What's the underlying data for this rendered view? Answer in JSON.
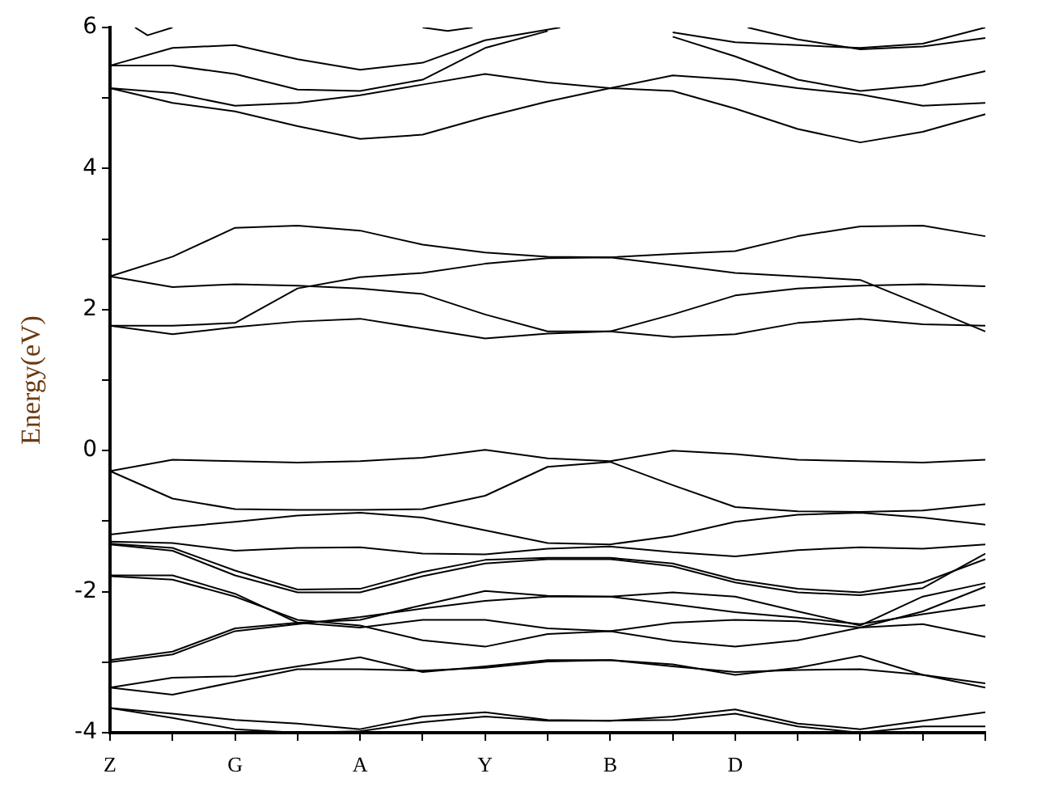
{
  "chart_data": {
    "type": "line",
    "ylabel": "Energy(eV)",
    "ylim": [
      -4,
      6
    ],
    "categories": [
      "Z",
      null,
      null,
      null,
      null,
      null,
      null,
      null,
      null,
      null,
      "G",
      null,
      null,
      null,
      null,
      null,
      null,
      null,
      null,
      null,
      "A",
      null,
      null,
      null,
      null,
      null,
      null,
      null,
      null,
      null,
      "Y",
      null,
      null,
      null,
      null,
      null,
      null,
      null,
      null,
      null,
      "B",
      null,
      null,
      null,
      null,
      null,
      null,
      null,
      null,
      null,
      "D",
      null,
      null,
      null,
      null,
      null,
      null,
      null,
      null,
      null,
      null,
      null,
      null,
      null,
      null,
      null,
      null,
      null,
      null,
      null,
      null
    ],
    "yticks": [
      -4,
      {
        "value": -3,
        "label": null
      },
      -2,
      {
        "value": -1,
        "label": null
      },
      0,
      {
        "value": 1,
        "label": null
      },
      2,
      {
        "value": 3,
        "label": null
      },
      4,
      {
        "value": 5,
        "label": null
      },
      6
    ],
    "grid": false,
    "legend": false,
    "marker": "none",
    "line_style": "solid",
    "series": [
      {
        "color": "#000000",
        "values": [
          5.14,
          null,
          null,
          null,
          null,
          4.93,
          null,
          null,
          null,
          null,
          4.81,
          null,
          null,
          null,
          null,
          4.6,
          null,
          null,
          null,
          null,
          4.42,
          null,
          null,
          null,
          null,
          4.48,
          null,
          null,
          null,
          null,
          4.73,
          null,
          null,
          null,
          null,
          4.95,
          null,
          null,
          null,
          null,
          5.14,
          null,
          null,
          null,
          null,
          5.1,
          null,
          null,
          null,
          null,
          4.85,
          null,
          null,
          null,
          null,
          4.56,
          null,
          null,
          null,
          null,
          4.37,
          null,
          null,
          null,
          null,
          4.52,
          null,
          null,
          null,
          null,
          4.77
        ]
      },
      {
        "color": "#000000",
        "values": [
          5.14,
          null,
          null,
          null,
          null,
          5.07,
          null,
          null,
          null,
          null,
          4.89,
          null,
          null,
          null,
          null,
          4.93,
          null,
          null,
          null,
          null,
          5.04,
          null,
          null,
          null,
          null,
          5.19,
          null,
          null,
          null,
          null,
          5.34,
          null,
          null,
          null,
          null,
          5.22,
          null,
          null,
          null,
          null,
          5.14,
          null,
          null,
          null,
          null,
          5.32,
          null,
          null,
          null,
          null,
          5.26,
          null,
          null,
          null,
          null,
          5.14,
          null,
          null,
          null,
          null,
          5.05,
          null,
          null,
          null,
          null,
          4.89,
          null,
          null,
          null,
          null,
          4.93
        ]
      },
      {
        "color": "#000000",
        "values": [
          5.46,
          null,
          null,
          null,
          null,
          5.46,
          null,
          null,
          null,
          null,
          5.34,
          null,
          null,
          null,
          null,
          5.12,
          null,
          null,
          null,
          null,
          5.1,
          null,
          null,
          null,
          null,
          5.26,
          null,
          null,
          null,
          null,
          5.71,
          null,
          null,
          null,
          null,
          5.95,
          null,
          null,
          null,
          null,
          null,
          null,
          null,
          null,
          null,
          null,
          null,
          null,
          null,
          null,
          null,
          null,
          null,
          null,
          null,
          null,
          null,
          null,
          null,
          null,
          null,
          null,
          null,
          null,
          null,
          null,
          null,
          null,
          null,
          null,
          null
        ]
      },
      {
        "color": "#000000",
        "values": [
          null,
          null,
          null,
          null,
          null,
          null,
          null,
          null,
          null,
          null,
          null,
          null,
          null,
          null,
          null,
          null,
          null,
          null,
          null,
          null,
          null,
          null,
          null,
          null,
          null,
          null,
          null,
          null,
          null,
          null,
          null,
          null,
          null,
          null,
          null,
          null,
          null,
          null,
          null,
          null,
          null,
          null,
          null,
          null,
          null,
          5.87,
          null,
          null,
          null,
          null,
          5.59,
          null,
          null,
          null,
          null,
          5.26,
          null,
          null,
          null,
          null,
          5.1,
          null,
          null,
          null,
          null,
          5.18,
          null,
          null,
          null,
          null,
          5.38
        ]
      },
      {
        "color": "#000000",
        "values": [
          5.46,
          null,
          null,
          null,
          null,
          5.71,
          null,
          null,
          null,
          null,
          5.75,
          null,
          null,
          null,
          null,
          5.55,
          null,
          null,
          null,
          null,
          5.4,
          null,
          null,
          null,
          null,
          5.5,
          null,
          null,
          null,
          null,
          5.82,
          null,
          null,
          null,
          null,
          null,
          6.0,
          null,
          null,
          null,
          null,
          null,
          null,
          null,
          null,
          null,
          null,
          null,
          null,
          null,
          null,
          null,
          null,
          null,
          null,
          null,
          null,
          null,
          null,
          null,
          null,
          null,
          null,
          null,
          null,
          null,
          null,
          null,
          null,
          null,
          null
        ]
      },
      {
        "color": "#000000",
        "values": [
          null,
          null,
          null,
          null,
          null,
          null,
          null,
          null,
          null,
          null,
          null,
          null,
          null,
          null,
          null,
          null,
          null,
          null,
          null,
          null,
          null,
          null,
          null,
          null,
          null,
          null,
          null,
          null,
          null,
          null,
          null,
          null,
          null,
          null,
          null,
          null,
          null,
          null,
          null,
          null,
          null,
          null,
          null,
          null,
          null,
          5.93,
          null,
          null,
          null,
          null,
          5.79,
          null,
          null,
          null,
          null,
          5.75,
          null,
          null,
          null,
          null,
          5.71,
          null,
          null,
          null,
          null,
          5.77,
          null,
          null,
          null,
          null,
          6.0
        ]
      },
      {
        "color": "#000000",
        "values": [
          null,
          null,
          6.0,
          5.89,
          null,
          6.0,
          null,
          null,
          null,
          null,
          null,
          null,
          null,
          null,
          null,
          null,
          null,
          null,
          null,
          null,
          null,
          null,
          null,
          null,
          null,
          null,
          null,
          null,
          null,
          null,
          null,
          null,
          null,
          null,
          null,
          null,
          null,
          null,
          null,
          null,
          null,
          null,
          null,
          null,
          null,
          null,
          null,
          null,
          null,
          null,
          null,
          null,
          null,
          null,
          null,
          null,
          null,
          null,
          null,
          null,
          null,
          null,
          null,
          null,
          null,
          null,
          null,
          null,
          null,
          null,
          null
        ]
      },
      {
        "color": "#000000",
        "values": [
          null,
          null,
          null,
          null,
          null,
          null,
          null,
          null,
          null,
          null,
          null,
          null,
          null,
          null,
          null,
          null,
          null,
          null,
          null,
          null,
          null,
          null,
          null,
          null,
          null,
          6.0,
          null,
          5.95,
          null,
          6.0,
          null,
          null,
          null,
          null,
          null,
          null,
          null,
          null,
          null,
          null,
          null,
          null,
          null,
          null,
          null,
          null,
          null,
          null,
          null,
          null,
          null,
          null,
          null,
          null,
          null,
          null,
          null,
          null,
          null,
          null,
          null,
          null,
          null,
          null,
          null,
          null,
          null,
          null,
          null,
          null,
          null
        ]
      },
      {
        "color": "#000000",
        "values": [
          null,
          null,
          null,
          null,
          null,
          null,
          null,
          null,
          null,
          null,
          null,
          null,
          null,
          null,
          null,
          null,
          null,
          null,
          null,
          null,
          null,
          null,
          null,
          null,
          null,
          null,
          null,
          null,
          null,
          null,
          null,
          null,
          null,
          null,
          null,
          null,
          null,
          null,
          null,
          null,
          null,
          null,
          null,
          null,
          null,
          null,
          null,
          null,
          null,
          null,
          null,
          6.0,
          null,
          null,
          null,
          5.83,
          null,
          null,
          null,
          null,
          5.69,
          null,
          null,
          null,
          null,
          5.73,
          null,
          null,
          null,
          null,
          5.85
        ]
      },
      {
        "color": "#000000",
        "values": [
          2.47,
          null,
          null,
          null,
          null,
          2.75,
          null,
          null,
          null,
          null,
          3.16,
          null,
          null,
          null,
          null,
          3.19,
          null,
          null,
          null,
          null,
          3.12,
          null,
          null,
          null,
          null,
          2.92,
          null,
          null,
          null,
          null,
          2.81,
          null,
          null,
          null,
          null,
          2.75,
          null,
          null,
          null,
          null,
          2.74,
          null,
          null,
          null,
          null,
          2.79,
          null,
          null,
          null,
          null,
          2.83,
          null,
          null,
          null,
          null,
          3.04,
          null,
          null,
          null,
          null,
          3.18,
          null,
          null,
          null,
          null,
          3.19,
          null,
          null,
          null,
          null,
          3.04
        ]
      },
      {
        "color": "#000000",
        "values": [
          2.47,
          null,
          null,
          null,
          null,
          2.32,
          null,
          null,
          null,
          null,
          2.36,
          null,
          null,
          null,
          null,
          2.34,
          null,
          null,
          null,
          null,
          2.3,
          null,
          null,
          null,
          null,
          2.22,
          null,
          null,
          null,
          null,
          1.93,
          null,
          null,
          null,
          null,
          1.69,
          null,
          null,
          null,
          null,
          1.69,
          null,
          null,
          null,
          null,
          1.93,
          null,
          null,
          null,
          null,
          2.2,
          null,
          null,
          null,
          null,
          2.3,
          null,
          null,
          null,
          null,
          2.34,
          null,
          null,
          null,
          null,
          2.36,
          null,
          null,
          null,
          null,
          2.33
        ]
      },
      {
        "color": "#000000",
        "values": [
          1.77,
          null,
          null,
          null,
          null,
          1.77,
          null,
          null,
          null,
          null,
          1.81,
          null,
          null,
          null,
          null,
          2.3,
          null,
          null,
          null,
          null,
          2.46,
          null,
          null,
          null,
          null,
          2.52,
          null,
          null,
          null,
          null,
          2.65,
          null,
          null,
          null,
          null,
          2.73,
          null,
          null,
          null,
          null,
          2.74,
          null,
          null,
          null,
          null,
          2.63,
          null,
          null,
          null,
          null,
          2.52,
          null,
          null,
          null,
          null,
          2.47,
          null,
          null,
          null,
          null,
          2.42,
          null,
          null,
          null,
          null,
          2.06,
          null,
          null,
          null,
          null,
          1.69
        ]
      },
      {
        "color": "#000000",
        "values": [
          1.77,
          null,
          null,
          null,
          null,
          1.65,
          null,
          null,
          null,
          null,
          1.75,
          null,
          null,
          null,
          null,
          1.83,
          null,
          null,
          null,
          null,
          1.87,
          null,
          null,
          null,
          null,
          1.73,
          null,
          null,
          null,
          null,
          1.59,
          null,
          null,
          null,
          null,
          1.66,
          null,
          null,
          null,
          null,
          1.69,
          null,
          null,
          null,
          null,
          1.61,
          null,
          null,
          null,
          null,
          1.65,
          null,
          null,
          null,
          null,
          1.81,
          null,
          null,
          null,
          null,
          1.87,
          null,
          null,
          null,
          null,
          1.79,
          null,
          null,
          null,
          null,
          1.77
        ]
      },
      {
        "color": "#000000",
        "values": [
          -0.29,
          null,
          null,
          null,
          null,
          -0.13,
          null,
          null,
          null,
          null,
          -0.15,
          null,
          null,
          null,
          null,
          -0.17,
          null,
          null,
          null,
          null,
          -0.15,
          null,
          null,
          null,
          null,
          -0.1,
          null,
          null,
          null,
          null,
          0.01,
          null,
          null,
          null,
          null,
          -0.11,
          null,
          null,
          null,
          null,
          -0.15,
          null,
          null,
          null,
          null,
          0.0,
          null,
          null,
          null,
          null,
          -0.05,
          null,
          null,
          null,
          null,
          -0.13,
          null,
          null,
          null,
          null,
          -0.15,
          null,
          null,
          null,
          null,
          -0.17,
          null,
          null,
          null,
          null,
          -0.13
        ]
      },
      {
        "color": "#000000",
        "values": [
          -0.29,
          null,
          null,
          null,
          null,
          -0.68,
          null,
          null,
          null,
          null,
          -0.83,
          null,
          null,
          null,
          null,
          -0.84,
          null,
          null,
          null,
          null,
          -0.84,
          null,
          null,
          null,
          null,
          -0.83,
          null,
          null,
          null,
          null,
          -0.64,
          null,
          null,
          null,
          null,
          -0.23,
          null,
          null,
          null,
          null,
          -0.16,
          null,
          null,
          null,
          null,
          -0.49,
          null,
          null,
          null,
          null,
          -0.8,
          null,
          null,
          null,
          null,
          -0.86,
          null,
          null,
          null,
          null,
          -0.87,
          null,
          null,
          null,
          null,
          -0.85,
          null,
          null,
          null,
          null,
          -0.76
        ]
      },
      {
        "color": "#000000",
        "values": [
          -1.19,
          null,
          null,
          null,
          null,
          -1.09,
          null,
          null,
          null,
          null,
          -1.01,
          null,
          null,
          null,
          null,
          -0.92,
          null,
          null,
          null,
          null,
          -0.88,
          null,
          null,
          null,
          null,
          -0.95,
          null,
          null,
          null,
          null,
          -1.13,
          null,
          null,
          null,
          null,
          -1.31,
          null,
          null,
          null,
          null,
          -1.33,
          null,
          null,
          null,
          null,
          -1.21,
          null,
          null,
          null,
          null,
          -1.01,
          null,
          null,
          null,
          null,
          -0.91,
          null,
          null,
          null,
          null,
          -0.88,
          null,
          null,
          null,
          null,
          -0.95,
          null,
          null,
          null,
          null,
          -1.05
        ]
      },
      {
        "color": "#000000",
        "values": [
          -1.29,
          null,
          null,
          null,
          null,
          -1.31,
          null,
          null,
          null,
          null,
          -1.42,
          null,
          null,
          null,
          null,
          -1.38,
          null,
          null,
          null,
          null,
          -1.37,
          null,
          null,
          null,
          null,
          -1.46,
          null,
          null,
          null,
          null,
          -1.47,
          null,
          null,
          null,
          null,
          -1.39,
          null,
          null,
          null,
          null,
          -1.36,
          null,
          null,
          null,
          null,
          -1.44,
          null,
          null,
          null,
          null,
          -1.5,
          null,
          null,
          null,
          null,
          -1.41,
          null,
          null,
          null,
          null,
          -1.37,
          null,
          null,
          null,
          null,
          -1.39,
          null,
          null,
          null,
          null,
          -1.33
        ]
      },
      {
        "color": "#000000",
        "values": [
          -1.32,
          null,
          null,
          null,
          null,
          -1.38,
          null,
          null,
          null,
          null,
          -1.7,
          null,
          null,
          null,
          null,
          -1.97,
          null,
          null,
          null,
          null,
          -1.96,
          null,
          null,
          null,
          null,
          -1.72,
          null,
          null,
          null,
          null,
          -1.55,
          null,
          null,
          null,
          null,
          -1.52,
          null,
          null,
          null,
          null,
          -1.52,
          null,
          null,
          null,
          null,
          -1.6,
          null,
          null,
          null,
          null,
          -1.83,
          null,
          null,
          null,
          null,
          -1.96,
          null,
          null,
          null,
          null,
          -2.01,
          null,
          null,
          null,
          null,
          -1.87,
          null,
          null,
          null,
          null,
          -1.54
        ]
      },
      {
        "color": "#000000",
        "values": [
          -1.33,
          null,
          null,
          null,
          null,
          -1.42,
          null,
          null,
          null,
          null,
          -1.77,
          null,
          null,
          null,
          null,
          -2.01,
          null,
          null,
          null,
          null,
          -2.01,
          null,
          null,
          null,
          null,
          -1.78,
          null,
          null,
          null,
          null,
          -1.6,
          null,
          null,
          null,
          null,
          -1.54,
          null,
          null,
          null,
          null,
          -1.54,
          null,
          null,
          null,
          null,
          -1.64,
          null,
          null,
          null,
          null,
          -1.87,
          null,
          null,
          null,
          null,
          -2.01,
          null,
          null,
          null,
          null,
          -2.05,
          null,
          null,
          null,
          null,
          -1.95,
          null,
          null,
          null,
          null,
          -1.46
        ]
      },
      {
        "color": "#000000",
        "values": [
          -1.77,
          null,
          null,
          null,
          null,
          -1.77,
          null,
          null,
          null,
          null,
          -2.03,
          null,
          null,
          null,
          null,
          -2.44,
          null,
          null,
          null,
          null,
          -2.4,
          null,
          null,
          null,
          null,
          -2.19,
          null,
          null,
          null,
          null,
          -1.99,
          null,
          null,
          null,
          null,
          -2.06,
          null,
          null,
          null,
          null,
          -2.07,
          null,
          null,
          null,
          null,
          -2.01,
          null,
          null,
          null,
          null,
          -2.07,
          null,
          null,
          null,
          null,
          -2.28,
          null,
          null,
          null,
          null,
          -2.48,
          null,
          null,
          null,
          null,
          -2.07,
          null,
          null,
          null,
          null,
          -1.88
        ]
      },
      {
        "color": "#000000",
        "values": [
          -1.78,
          null,
          null,
          null,
          null,
          -1.83,
          null,
          null,
          null,
          null,
          -2.07,
          null,
          null,
          null,
          null,
          -2.4,
          null,
          null,
          null,
          null,
          -2.48,
          null,
          null,
          null,
          null,
          -2.69,
          null,
          null,
          null,
          null,
          -2.78,
          null,
          null,
          null,
          null,
          -2.6,
          null,
          null,
          null,
          null,
          -2.56,
          null,
          null,
          null,
          null,
          -2.7,
          null,
          null,
          null,
          null,
          -2.78,
          null,
          null,
          null,
          null,
          -2.69,
          null,
          null,
          null,
          null,
          -2.51,
          null,
          null,
          null,
          null,
          -2.28,
          null,
          null,
          null,
          null,
          -1.93
        ]
      },
      {
        "color": "#000000",
        "values": [
          -2.97,
          null,
          null,
          null,
          null,
          -2.85,
          null,
          null,
          null,
          null,
          -2.52,
          null,
          null,
          null,
          null,
          -2.44,
          null,
          null,
          null,
          null,
          -2.51,
          null,
          null,
          null,
          null,
          -2.4,
          null,
          null,
          null,
          null,
          -2.4,
          null,
          null,
          null,
          null,
          -2.52,
          null,
          null,
          null,
          null,
          -2.56,
          null,
          null,
          null,
          null,
          -2.44,
          null,
          null,
          null,
          null,
          -2.4,
          null,
          null,
          null,
          null,
          -2.42,
          null,
          null,
          null,
          null,
          -2.51,
          null,
          null,
          null,
          null,
          -2.46,
          null,
          null,
          null,
          null,
          -2.64
        ]
      },
      {
        "color": "#000000",
        "values": [
          -3.0,
          null,
          null,
          null,
          null,
          -2.89,
          null,
          null,
          null,
          null,
          -2.56,
          null,
          null,
          null,
          null,
          -2.46,
          null,
          null,
          null,
          null,
          -2.36,
          null,
          null,
          null,
          null,
          -2.24,
          null,
          null,
          null,
          null,
          -2.13,
          null,
          null,
          null,
          null,
          -2.07,
          null,
          null,
          null,
          null,
          -2.07,
          null,
          null,
          null,
          null,
          -2.18,
          null,
          null,
          null,
          null,
          -2.29,
          null,
          null,
          null,
          null,
          -2.37,
          null,
          null,
          null,
          null,
          -2.46,
          null,
          null,
          null,
          null,
          -2.32,
          null,
          null,
          null,
          null,
          -2.19
        ]
      },
      {
        "color": "#000000",
        "values": [
          -3.36,
          null,
          null,
          null,
          null,
          -3.22,
          null,
          null,
          null,
          null,
          -3.2,
          null,
          null,
          null,
          null,
          -3.06,
          null,
          null,
          null,
          null,
          -2.93,
          null,
          null,
          null,
          null,
          -3.14,
          null,
          null,
          null,
          null,
          -3.06,
          null,
          null,
          null,
          null,
          -2.97,
          null,
          null,
          null,
          null,
          -2.97,
          null,
          null,
          null,
          null,
          -3.03,
          null,
          null,
          null,
          null,
          -3.18,
          null,
          null,
          null,
          null,
          -3.08,
          null,
          null,
          null,
          null,
          -2.91,
          null,
          null,
          null,
          null,
          -3.18,
          null,
          null,
          null,
          null,
          -3.3
        ]
      },
      {
        "color": "#000000",
        "values": [
          -3.36,
          null,
          null,
          null,
          null,
          -3.46,
          null,
          null,
          null,
          null,
          -3.28,
          null,
          null,
          null,
          null,
          -3.1,
          null,
          null,
          null,
          null,
          -3.1,
          null,
          null,
          null,
          null,
          -3.12,
          null,
          null,
          null,
          null,
          -3.08,
          null,
          null,
          null,
          null,
          -2.99,
          null,
          null,
          null,
          null,
          -2.97,
          null,
          null,
          null,
          null,
          -3.06,
          null,
          null,
          null,
          null,
          -3.14,
          null,
          null,
          null,
          null,
          -3.11,
          null,
          null,
          null,
          null,
          -3.1,
          null,
          null,
          null,
          null,
          -3.18,
          null,
          null,
          null,
          null,
          -3.36
        ]
      },
      {
        "color": "#000000",
        "values": [
          -3.65,
          null,
          null,
          null,
          null,
          -3.73,
          null,
          null,
          null,
          null,
          -3.82,
          null,
          null,
          null,
          null,
          -3.87,
          null,
          null,
          null,
          null,
          -3.95,
          null,
          null,
          null,
          null,
          -3.77,
          null,
          null,
          null,
          null,
          -3.71,
          null,
          null,
          null,
          null,
          -3.82,
          null,
          null,
          null,
          null,
          -3.83,
          null,
          null,
          null,
          null,
          -3.77,
          null,
          null,
          null,
          null,
          -3.67,
          null,
          null,
          null,
          null,
          -3.87,
          null,
          null,
          null,
          null,
          -3.95,
          null,
          null,
          null,
          null,
          -3.83,
          null,
          null,
          null,
          null,
          -3.71
        ]
      },
      {
        "color": "#000000",
        "values": [
          -3.65,
          null,
          null,
          null,
          null,
          -3.79,
          null,
          null,
          null,
          null,
          -3.95,
          null,
          null,
          null,
          null,
          -4.0,
          null,
          null,
          null,
          null,
          -3.98,
          null,
          null,
          null,
          null,
          -3.85,
          null,
          null,
          null,
          null,
          -3.77,
          null,
          null,
          null,
          null,
          -3.83,
          null,
          null,
          null,
          null,
          -3.83,
          null,
          null,
          null,
          null,
          -3.82,
          null,
          null,
          null,
          null,
          -3.73,
          null,
          null,
          null,
          null,
          -3.91,
          null,
          null,
          null,
          null,
          -4.0,
          null,
          null,
          null,
          null,
          -3.91,
          null,
          null,
          null,
          null,
          -3.91
        ]
      }
    ]
  }
}
